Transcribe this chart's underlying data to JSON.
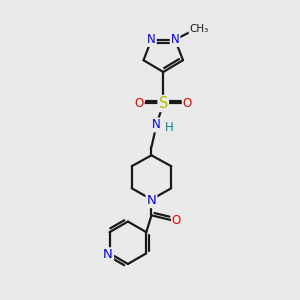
{
  "bg_color": "#eaeaea",
  "bond_color": "#1a1a1a",
  "bond_lw": 1.6,
  "atom_colors": {
    "N": "#0000ee",
    "O": "#ee0000",
    "S": "#bbbb00",
    "H": "#008888",
    "C": "#1a1a1a"
  },
  "fs": 8.5,
  "figsize": [
    3.0,
    3.0
  ],
  "dpi": 100
}
